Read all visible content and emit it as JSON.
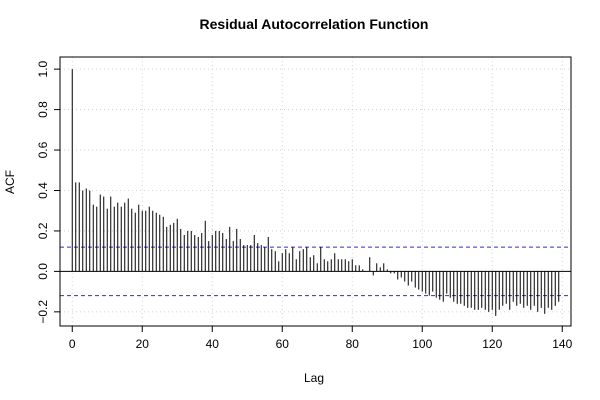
{
  "chart_data": {
    "type": "bar",
    "title": "Residual Autocorrelation Function",
    "xlabel": "Lag",
    "ylabel": "ACF",
    "xlim": [
      -3.5,
      142.5
    ],
    "ylim": [
      -0.27,
      1.06
    ],
    "x_ticks": [
      0,
      20,
      40,
      60,
      80,
      100,
      120,
      140
    ],
    "x_tick_labels": [
      "0",
      "20",
      "40",
      "60",
      "80",
      "100",
      "120",
      "140"
    ],
    "y_ticks": [
      -0.2,
      0.0,
      0.2,
      0.4,
      0.6,
      0.8,
      1.0
    ],
    "y_tick_labels": [
      "−0.2",
      "0.0",
      "0.2",
      "0.4",
      "0.6",
      "0.8",
      "1.0"
    ],
    "grid": true,
    "confidence_band": 0.12,
    "lags": [
      0,
      1,
      2,
      3,
      4,
      5,
      6,
      7,
      8,
      9,
      10,
      11,
      12,
      13,
      14,
      15,
      16,
      17,
      18,
      19,
      20,
      21,
      22,
      23,
      24,
      25,
      26,
      27,
      28,
      29,
      30,
      31,
      32,
      33,
      34,
      35,
      36,
      37,
      38,
      39,
      40,
      41,
      42,
      43,
      44,
      45,
      46,
      47,
      48,
      49,
      50,
      51,
      52,
      53,
      54,
      55,
      56,
      57,
      58,
      59,
      60,
      61,
      62,
      63,
      64,
      65,
      66,
      67,
      68,
      69,
      70,
      71,
      72,
      73,
      74,
      75,
      76,
      77,
      78,
      79,
      80,
      81,
      82,
      83,
      84,
      85,
      86,
      87,
      88,
      89,
      90,
      91,
      92,
      93,
      94,
      95,
      96,
      97,
      98,
      99,
      100,
      101,
      102,
      103,
      104,
      105,
      106,
      107,
      108,
      109,
      110,
      111,
      112,
      113,
      114,
      115,
      116,
      117,
      118,
      119,
      120,
      121,
      122,
      123,
      124,
      125,
      126,
      127,
      128,
      129,
      130,
      131,
      132,
      133,
      134,
      135,
      136,
      137,
      138,
      139
    ],
    "values": [
      1.0,
      0.44,
      0.44,
      0.4,
      0.41,
      0.4,
      0.33,
      0.32,
      0.38,
      0.37,
      0.31,
      0.37,
      0.32,
      0.34,
      0.32,
      0.34,
      0.36,
      0.31,
      0.29,
      0.33,
      0.3,
      0.3,
      0.32,
      0.3,
      0.29,
      0.28,
      0.27,
      0.22,
      0.23,
      0.24,
      0.26,
      0.21,
      0.18,
      0.2,
      0.2,
      0.18,
      0.17,
      0.19,
      0.25,
      0.15,
      0.18,
      0.2,
      0.2,
      0.19,
      0.16,
      0.22,
      0.15,
      0.21,
      0.16,
      0.13,
      0.13,
      0.13,
      0.18,
      0.14,
      0.13,
      0.12,
      0.17,
      0.11,
      0.1,
      0.05,
      0.09,
      0.11,
      0.09,
      0.12,
      0.06,
      0.1,
      0.11,
      0.12,
      0.07,
      0.08,
      0.04,
      0.12,
      0.06,
      0.05,
      0.06,
      0.09,
      0.06,
      0.06,
      0.06,
      0.05,
      0.06,
      0.03,
      0.03,
      0.01,
      0.0,
      0.07,
      -0.02,
      0.04,
      0.02,
      0.04,
      0.01,
      -0.01,
      -0.01,
      -0.04,
      -0.03,
      -0.05,
      -0.07,
      -0.05,
      -0.08,
      -0.09,
      -0.1,
      -0.11,
      -0.12,
      -0.1,
      -0.13,
      -0.14,
      -0.15,
      -0.11,
      -0.13,
      -0.15,
      -0.16,
      -0.16,
      -0.17,
      -0.18,
      -0.18,
      -0.19,
      -0.19,
      -0.18,
      -0.19,
      -0.2,
      -0.19,
      -0.22,
      -0.19,
      -0.17,
      -0.16,
      -0.19,
      -0.15,
      -0.17,
      -0.16,
      -0.18,
      -0.17,
      -0.19,
      -0.17,
      -0.2,
      -0.18,
      -0.21,
      -0.18,
      -0.19,
      -0.17,
      -0.15
    ]
  },
  "colors": {
    "bars": "#000000",
    "confidence_band": "#2b2be6",
    "grid": "#c8c8c8",
    "axis": "#000000",
    "zero_line": "#000000",
    "background": "#ffffff"
  }
}
